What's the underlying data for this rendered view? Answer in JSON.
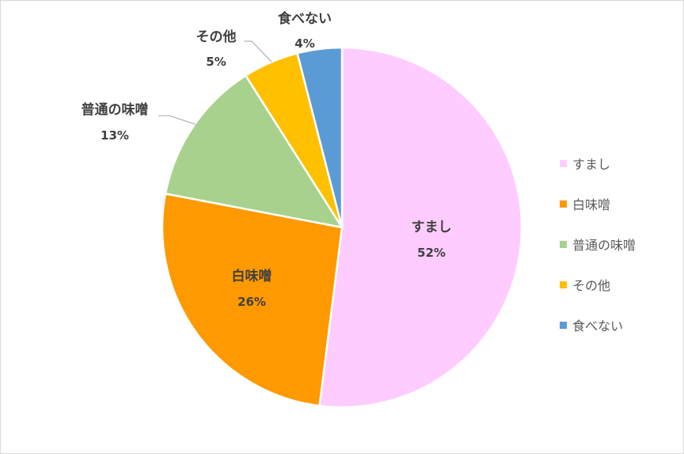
{
  "chart_data": {
    "type": "pie",
    "categories": [
      "すまし",
      "白味噌",
      "普通の味噌",
      "その他",
      "食べない"
    ],
    "values": [
      52,
      26,
      13,
      5,
      4
    ],
    "value_labels": [
      "52%",
      "26%",
      "13%",
      "5%",
      "4%"
    ],
    "colors": [
      "#FFCCFF",
      "#FF9900",
      "#A9D18E",
      "#FFC000",
      "#5B9BD5"
    ],
    "start_angle_deg": 0,
    "direction": "clockwise",
    "legend_position": "right"
  }
}
